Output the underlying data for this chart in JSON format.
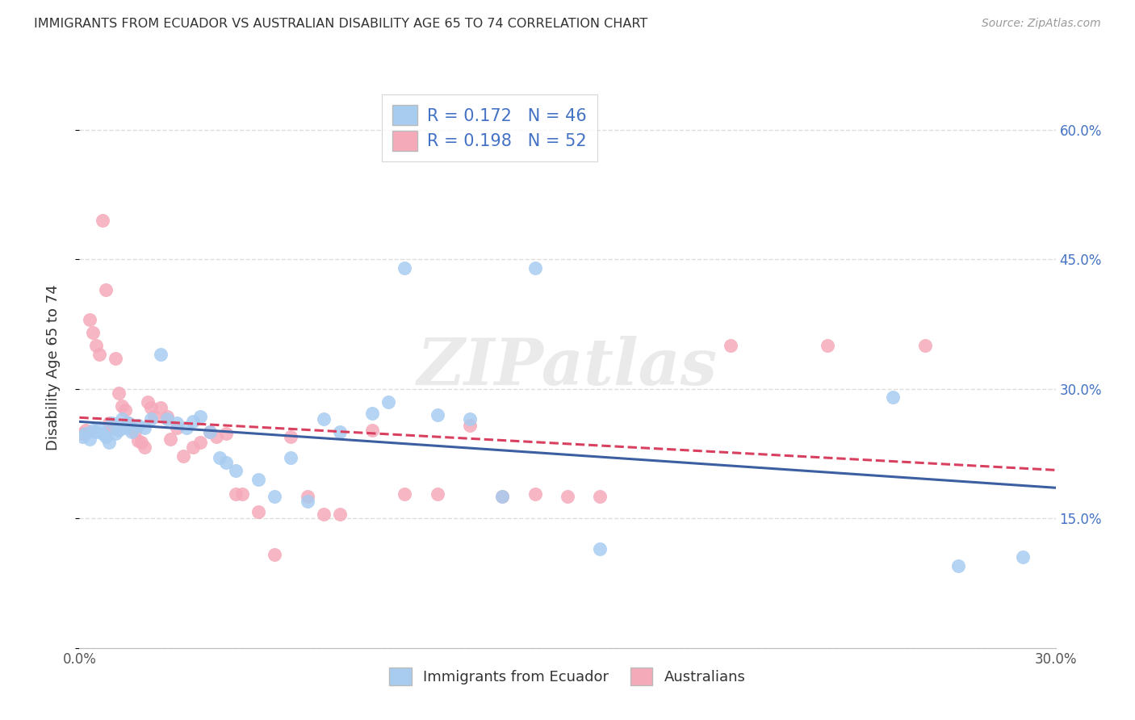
{
  "title": "IMMIGRANTS FROM ECUADOR VS AUSTRALIAN DISABILITY AGE 65 TO 74 CORRELATION CHART",
  "source": "Source: ZipAtlas.com",
  "ylabel": "Disability Age 65 to 74",
  "xlim": [
    0.0,
    0.3
  ],
  "ylim": [
    0.0,
    0.65
  ],
  "xticks": [
    0.0,
    0.05,
    0.1,
    0.15,
    0.2,
    0.25,
    0.3
  ],
  "yticks": [
    0.0,
    0.15,
    0.3,
    0.45,
    0.6
  ],
  "legend_labels": [
    "Immigrants from Ecuador",
    "Australians"
  ],
  "r_ecuador": 0.172,
  "n_ecuador": 46,
  "r_australia": 0.198,
  "n_australia": 52,
  "blue_color": "#A8CCF0",
  "pink_color": "#F5AABA",
  "blue_line_color": "#3B5FA0",
  "pink_line_color": "#D94060",
  "watermark": "ZIPatlas",
  "background_color": "#FFFFFF",
  "grid_color": "#DDDDDD",
  "ecuador_x": [
    0.001,
    0.002,
    0.003,
    0.004,
    0.005,
    0.006,
    0.007,
    0.008,
    0.009,
    0.01,
    0.011,
    0.012,
    0.013,
    0.014,
    0.015,
    0.016,
    0.018,
    0.02,
    0.022,
    0.025,
    0.027,
    0.03,
    0.033,
    0.035,
    0.037,
    0.04,
    0.043,
    0.045,
    0.048,
    0.055,
    0.06,
    0.065,
    0.07,
    0.075,
    0.08,
    0.09,
    0.095,
    0.1,
    0.11,
    0.12,
    0.13,
    0.14,
    0.16,
    0.25,
    0.27,
    0.29
  ],
  "ecuador_y": [
    0.245,
    0.248,
    0.242,
    0.252,
    0.25,
    0.255,
    0.248,
    0.245,
    0.238,
    0.26,
    0.248,
    0.252,
    0.265,
    0.255,
    0.26,
    0.25,
    0.258,
    0.255,
    0.265,
    0.34,
    0.265,
    0.26,
    0.255,
    0.262,
    0.268,
    0.25,
    0.22,
    0.215,
    0.205,
    0.195,
    0.175,
    0.22,
    0.17,
    0.265,
    0.25,
    0.272,
    0.285,
    0.44,
    0.27,
    0.265,
    0.175,
    0.44,
    0.115,
    0.29,
    0.095,
    0.105
  ],
  "australia_x": [
    0.001,
    0.002,
    0.003,
    0.004,
    0.005,
    0.006,
    0.007,
    0.008,
    0.009,
    0.01,
    0.011,
    0.012,
    0.013,
    0.014,
    0.015,
    0.016,
    0.017,
    0.018,
    0.019,
    0.02,
    0.021,
    0.022,
    0.023,
    0.025,
    0.027,
    0.028,
    0.03,
    0.032,
    0.035,
    0.037,
    0.04,
    0.042,
    0.045,
    0.048,
    0.05,
    0.055,
    0.06,
    0.065,
    0.07,
    0.075,
    0.08,
    0.09,
    0.1,
    0.11,
    0.12,
    0.13,
    0.14,
    0.15,
    0.16,
    0.2,
    0.23,
    0.26
  ],
  "australia_y": [
    0.248,
    0.252,
    0.38,
    0.365,
    0.35,
    0.34,
    0.495,
    0.415,
    0.26,
    0.255,
    0.335,
    0.295,
    0.28,
    0.275,
    0.26,
    0.255,
    0.25,
    0.24,
    0.238,
    0.232,
    0.285,
    0.278,
    0.268,
    0.278,
    0.268,
    0.242,
    0.255,
    0.222,
    0.232,
    0.238,
    0.25,
    0.245,
    0.248,
    0.178,
    0.178,
    0.158,
    0.108,
    0.245,
    0.175,
    0.155,
    0.155,
    0.252,
    0.178,
    0.178,
    0.258,
    0.175,
    0.178,
    0.175,
    0.175,
    0.35,
    0.35,
    0.35
  ]
}
